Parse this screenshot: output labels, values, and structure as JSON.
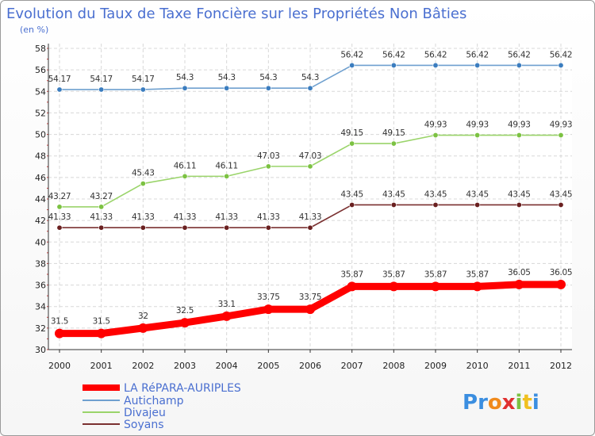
{
  "chart_data": {
    "type": "line",
    "title": "Evolution du Taux de Taxe Foncière sur les Propriétés Non Bâties",
    "subtitle": "(en %)",
    "x": [
      "2000",
      "2001",
      "2002",
      "2003",
      "2004",
      "2005",
      "2006",
      "2007",
      "2008",
      "2009",
      "2010",
      "2011",
      "2012"
    ],
    "ylim": [
      30,
      58
    ],
    "yticks": [
      30,
      32,
      34,
      36,
      38,
      40,
      42,
      44,
      46,
      48,
      50,
      52,
      54,
      56,
      58
    ],
    "grid": true,
    "legend_position": "bottom-left",
    "series": [
      {
        "name": "LA RéPARA-AURIPLES",
        "color": "#ff0000",
        "marker_color": "#ff0000",
        "values": [
          31.5,
          31.5,
          32,
          32.5,
          33.1,
          33.75,
          33.75,
          35.87,
          35.87,
          35.87,
          35.87,
          36.05,
          36.05
        ],
        "labels": [
          "31.5",
          "31.5",
          "32",
          "32.5",
          "33.1",
          "33.75",
          "33.75",
          "35.87",
          "35.87",
          "35.87",
          "35.87",
          "36.05",
          "36.05"
        ]
      },
      {
        "name": "Autichamp",
        "color": "#6fa0cf",
        "marker_color": "#3b7dbf",
        "values": [
          54.17,
          54.17,
          54.17,
          54.3,
          54.3,
          54.3,
          54.3,
          56.42,
          56.42,
          56.42,
          56.42,
          56.42,
          56.42
        ],
        "labels": [
          "54.17",
          "54.17",
          "54.17",
          "54.3",
          "54.3",
          "54.3",
          "54.3",
          "56.42",
          "56.42",
          "56.42",
          "56.42",
          "56.42",
          "56.42"
        ]
      },
      {
        "name": "Divajeu",
        "color": "#9ad46a",
        "marker_color": "#7cc242",
        "values": [
          43.27,
          43.27,
          45.43,
          46.11,
          46.11,
          47.03,
          47.03,
          49.15,
          49.15,
          49.93,
          49.93,
          49.93,
          49.93
        ],
        "labels": [
          "43.27",
          "43.27",
          "45.43",
          "46.11",
          "46.11",
          "47.03",
          "47.03",
          "49.15",
          "49.15",
          "49.93",
          "49.93",
          "49.93",
          "49.93"
        ]
      },
      {
        "name": "Soyans",
        "color": "#7a3030",
        "marker_color": "#6a2020",
        "values": [
          41.33,
          41.33,
          41.33,
          41.33,
          41.33,
          41.33,
          41.33,
          43.45,
          43.45,
          43.45,
          43.45,
          43.45,
          43.45
        ],
        "labels": [
          "41.33",
          "41.33",
          "41.33",
          "41.33",
          "41.33",
          "41.33",
          "41.33",
          "43.45",
          "43.45",
          "43.45",
          "43.45",
          "43.45",
          "43.45"
        ]
      }
    ]
  },
  "logo": {
    "text": "Proxiti"
  }
}
